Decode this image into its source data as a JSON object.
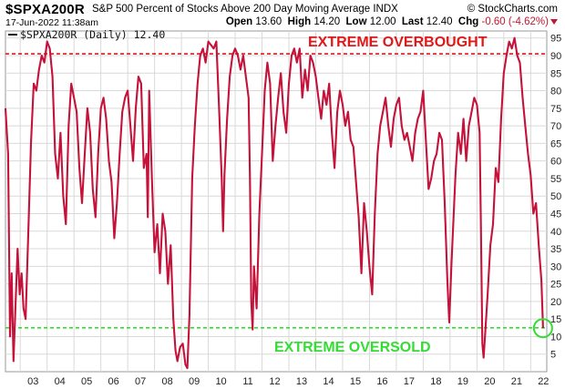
{
  "header": {
    "symbol": "$SPXA200R",
    "description": "S&P 500 Percent of Stocks Above 200 Day Moving Average",
    "exchange": "INDX",
    "brand": "© StockCharts.com",
    "datetime": "17-Jun-2022 11:38am",
    "open_label": "Open",
    "open": "13.60",
    "high_label": "High",
    "high": "14.20",
    "low_label": "Low",
    "low": "12.00",
    "last_label": "Last",
    "last": "12.40",
    "chg_label": "Chg",
    "chg": "-0.60 (-4.62%)"
  },
  "colors": {
    "series": "#c4123a",
    "overbought": "#e01818",
    "oversold": "#33dd33",
    "grid": "#d9d9d9"
  },
  "chart_data": {
    "type": "line",
    "legend": "$SPXA200R (Daily) 12.40",
    "ylim": [
      0,
      97
    ],
    "yticks": [
      5,
      10,
      15,
      20,
      25,
      30,
      35,
      40,
      45,
      50,
      55,
      60,
      65,
      70,
      75,
      80,
      85,
      90,
      95
    ],
    "xlim": [
      2002.45,
      2022.6
    ],
    "xticks": [
      {
        "x": 2003,
        "label": "03"
      },
      {
        "x": 2004,
        "label": "04"
      },
      {
        "x": 2005,
        "label": "05"
      },
      {
        "x": 2006,
        "label": "06"
      },
      {
        "x": 2007,
        "label": "07"
      },
      {
        "x": 2008,
        "label": "08"
      },
      {
        "x": 2009,
        "label": "09"
      },
      {
        "x": 2010,
        "label": "10"
      },
      {
        "x": 2011,
        "label": "11"
      },
      {
        "x": 2012,
        "label": "12"
      },
      {
        "x": 2013,
        "label": "13"
      },
      {
        "x": 2014,
        "label": "14"
      },
      {
        "x": 2015,
        "label": "15"
      },
      {
        "x": 2016,
        "label": "16"
      },
      {
        "x": 2017,
        "label": "17"
      },
      {
        "x": 2018,
        "label": "18"
      },
      {
        "x": 2019,
        "label": "19"
      },
      {
        "x": 2020,
        "label": "20"
      },
      {
        "x": 2021,
        "label": "21"
      },
      {
        "x": 2022,
        "label": "22"
      }
    ],
    "series": [
      {
        "points": [
          [
            2002.45,
            75
          ],
          [
            2002.55,
            62
          ],
          [
            2002.62,
            10
          ],
          [
            2002.68,
            28
          ],
          [
            2002.75,
            3
          ],
          [
            2002.82,
            18
          ],
          [
            2002.9,
            35
          ],
          [
            2002.98,
            22
          ],
          [
            2003.05,
            28
          ],
          [
            2003.12,
            18
          ],
          [
            2003.2,
            15
          ],
          [
            2003.3,
            40
          ],
          [
            2003.4,
            65
          ],
          [
            2003.5,
            82
          ],
          [
            2003.6,
            80
          ],
          [
            2003.7,
            86
          ],
          [
            2003.8,
            90
          ],
          [
            2003.9,
            88
          ],
          [
            2004.0,
            94
          ],
          [
            2004.1,
            92
          ],
          [
            2004.2,
            84
          ],
          [
            2004.3,
            62
          ],
          [
            2004.4,
            55
          ],
          [
            2004.5,
            68
          ],
          [
            2004.6,
            50
          ],
          [
            2004.7,
            42
          ],
          [
            2004.8,
            70
          ],
          [
            2004.9,
            82
          ],
          [
            2005.0,
            78
          ],
          [
            2005.1,
            74
          ],
          [
            2005.2,
            58
          ],
          [
            2005.3,
            48
          ],
          [
            2005.4,
            62
          ],
          [
            2005.5,
            75
          ],
          [
            2005.6,
            68
          ],
          [
            2005.7,
            52
          ],
          [
            2005.8,
            44
          ],
          [
            2005.9,
            62
          ],
          [
            2006.0,
            75
          ],
          [
            2006.1,
            78
          ],
          [
            2006.2,
            72
          ],
          [
            2006.3,
            60
          ],
          [
            2006.4,
            54
          ],
          [
            2006.5,
            38
          ],
          [
            2006.6,
            48
          ],
          [
            2006.7,
            62
          ],
          [
            2006.8,
            74
          ],
          [
            2006.9,
            78
          ],
          [
            2007.0,
            80
          ],
          [
            2007.1,
            70
          ],
          [
            2007.2,
            60
          ],
          [
            2007.3,
            75
          ],
          [
            2007.4,
            84
          ],
          [
            2007.5,
            82
          ],
          [
            2007.6,
            58
          ],
          [
            2007.7,
            62
          ],
          [
            2007.75,
            44
          ],
          [
            2007.8,
            80
          ],
          [
            2007.9,
            55
          ],
          [
            2008.0,
            34
          ],
          [
            2008.1,
            42
          ],
          [
            2008.2,
            28
          ],
          [
            2008.3,
            45
          ],
          [
            2008.4,
            40
          ],
          [
            2008.5,
            25
          ],
          [
            2008.6,
            36
          ],
          [
            2008.7,
            15
          ],
          [
            2008.78,
            6
          ],
          [
            2008.85,
            3
          ],
          [
            2008.95,
            7
          ],
          [
            2009.05,
            8
          ],
          [
            2009.15,
            2
          ],
          [
            2009.22,
            1
          ],
          [
            2009.3,
            16
          ],
          [
            2009.4,
            55
          ],
          [
            2009.5,
            70
          ],
          [
            2009.6,
            82
          ],
          [
            2009.7,
            90
          ],
          [
            2009.8,
            92
          ],
          [
            2009.9,
            88
          ],
          [
            2010.0,
            94
          ],
          [
            2010.1,
            93
          ],
          [
            2010.2,
            92
          ],
          [
            2010.3,
            94
          ],
          [
            2010.4,
            75
          ],
          [
            2010.5,
            55
          ],
          [
            2010.55,
            40
          ],
          [
            2010.6,
            56
          ],
          [
            2010.7,
            72
          ],
          [
            2010.8,
            84
          ],
          [
            2010.9,
            90
          ],
          [
            2011.0,
            92
          ],
          [
            2011.1,
            90
          ],
          [
            2011.2,
            86
          ],
          [
            2011.3,
            90
          ],
          [
            2011.4,
            84
          ],
          [
            2011.5,
            78
          ],
          [
            2011.55,
            55
          ],
          [
            2011.6,
            20
          ],
          [
            2011.65,
            12
          ],
          [
            2011.7,
            30
          ],
          [
            2011.8,
            18
          ],
          [
            2011.9,
            45
          ],
          [
            2012.0,
            62
          ],
          [
            2012.1,
            80
          ],
          [
            2012.2,
            88
          ],
          [
            2012.3,
            82
          ],
          [
            2012.4,
            60
          ],
          [
            2012.5,
            70
          ],
          [
            2012.6,
            78
          ],
          [
            2012.7,
            85
          ],
          [
            2012.8,
            74
          ],
          [
            2012.9,
            68
          ],
          [
            2013.0,
            82
          ],
          [
            2013.1,
            90
          ],
          [
            2013.2,
            92
          ],
          [
            2013.3,
            88
          ],
          [
            2013.4,
            92
          ],
          [
            2013.5,
            78
          ],
          [
            2013.6,
            86
          ],
          [
            2013.7,
            80
          ],
          [
            2013.8,
            90
          ],
          [
            2013.9,
            88
          ],
          [
            2014.0,
            84
          ],
          [
            2014.1,
            78
          ],
          [
            2014.2,
            72
          ],
          [
            2014.3,
            80
          ],
          [
            2014.4,
            76
          ],
          [
            2014.5,
            82
          ],
          [
            2014.6,
            68
          ],
          [
            2014.7,
            58
          ],
          [
            2014.8,
            74
          ],
          [
            2014.9,
            80
          ],
          [
            2015.0,
            76
          ],
          [
            2015.1,
            70
          ],
          [
            2015.2,
            74
          ],
          [
            2015.3,
            66
          ],
          [
            2015.4,
            64
          ],
          [
            2015.5,
            54
          ],
          [
            2015.6,
            44
          ],
          [
            2015.7,
            28
          ],
          [
            2015.8,
            48
          ],
          [
            2015.9,
            40
          ],
          [
            2016.0,
            30
          ],
          [
            2016.1,
            22
          ],
          [
            2016.2,
            45
          ],
          [
            2016.3,
            62
          ],
          [
            2016.4,
            70
          ],
          [
            2016.5,
            74
          ],
          [
            2016.6,
            78
          ],
          [
            2016.7,
            70
          ],
          [
            2016.8,
            64
          ],
          [
            2016.9,
            72
          ],
          [
            2017.0,
            76
          ],
          [
            2017.1,
            78
          ],
          [
            2017.2,
            70
          ],
          [
            2017.3,
            66
          ],
          [
            2017.4,
            68
          ],
          [
            2017.5,
            64
          ],
          [
            2017.6,
            60
          ],
          [
            2017.7,
            68
          ],
          [
            2017.8,
            72
          ],
          [
            2017.9,
            74
          ],
          [
            2018.0,
            80
          ],
          [
            2018.1,
            66
          ],
          [
            2018.2,
            52
          ],
          [
            2018.3,
            55
          ],
          [
            2018.4,
            60
          ],
          [
            2018.5,
            62
          ],
          [
            2018.6,
            68
          ],
          [
            2018.7,
            66
          ],
          [
            2018.8,
            48
          ],
          [
            2018.9,
            26
          ],
          [
            2018.97,
            14
          ],
          [
            2019.05,
            30
          ],
          [
            2019.2,
            56
          ],
          [
            2019.3,
            68
          ],
          [
            2019.4,
            62
          ],
          [
            2019.5,
            72
          ],
          [
            2019.6,
            60
          ],
          [
            2019.7,
            70
          ],
          [
            2019.8,
            74
          ],
          [
            2019.9,
            78
          ],
          [
            2020.0,
            76
          ],
          [
            2020.1,
            68
          ],
          [
            2020.15,
            40
          ],
          [
            2020.2,
            8
          ],
          [
            2020.25,
            4
          ],
          [
            2020.3,
            10
          ],
          [
            2020.4,
            22
          ],
          [
            2020.5,
            36
          ],
          [
            2020.6,
            42
          ],
          [
            2020.7,
            58
          ],
          [
            2020.8,
            54
          ],
          [
            2020.9,
            72
          ],
          [
            2021.0,
            85
          ],
          [
            2021.1,
            90
          ],
          [
            2021.2,
            94
          ],
          [
            2021.3,
            92
          ],
          [
            2021.4,
            95
          ],
          [
            2021.5,
            90
          ],
          [
            2021.6,
            88
          ],
          [
            2021.7,
            78
          ],
          [
            2021.8,
            70
          ],
          [
            2021.9,
            62
          ],
          [
            2022.0,
            56
          ],
          [
            2022.1,
            45
          ],
          [
            2022.2,
            48
          ],
          [
            2022.3,
            36
          ],
          [
            2022.4,
            26
          ],
          [
            2022.46,
            12.4
          ]
        ]
      }
    ],
    "annotations": [
      {
        "text": "EXTREME OVERBOUGHT",
        "y": 90.5
      },
      {
        "text": "EXTREME OVERSOLD",
        "y": 12.5
      }
    ],
    "highlight": {
      "x": 2022.46,
      "y": 12.4
    }
  }
}
